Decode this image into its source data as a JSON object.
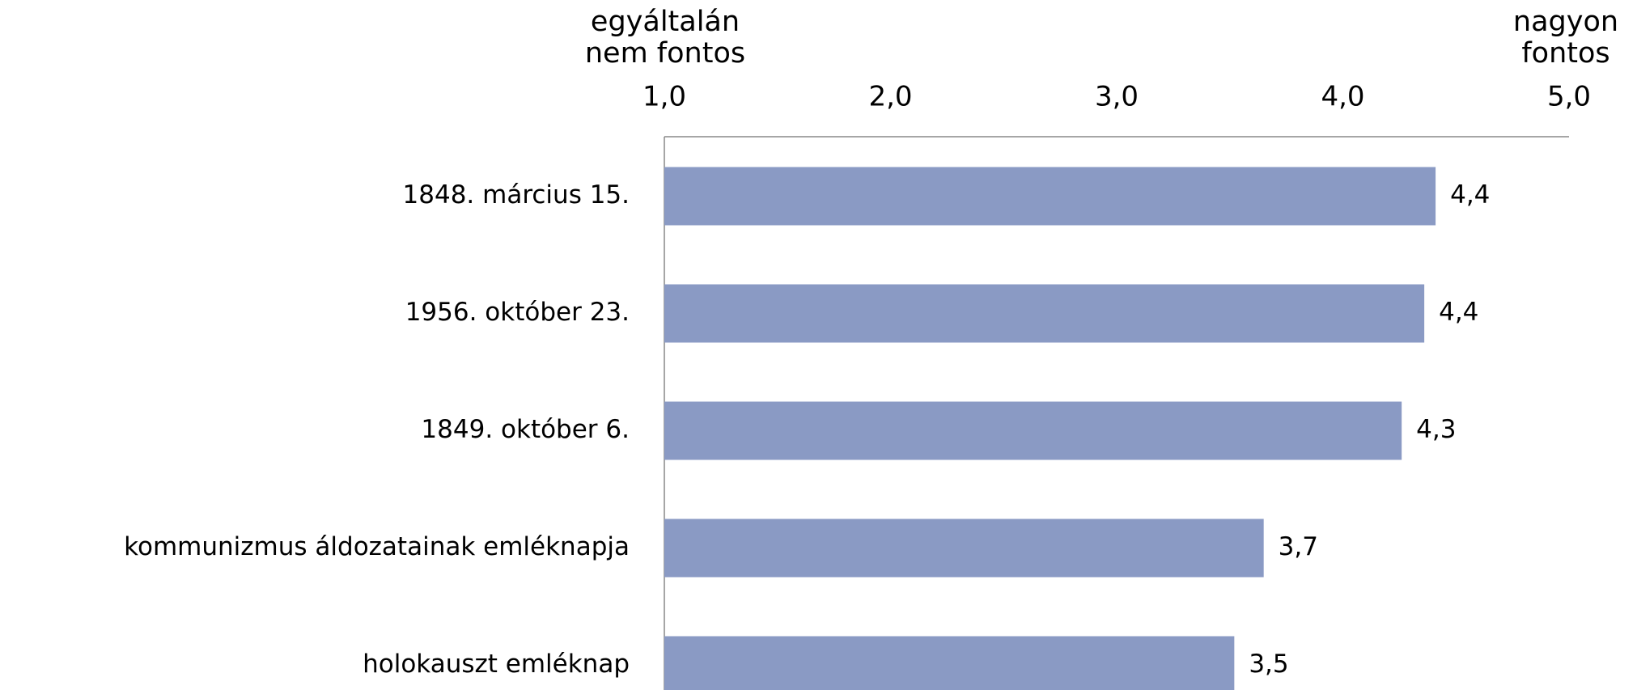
{
  "chart_data": {
    "type": "bar",
    "orientation": "horizontal",
    "categories": [
      "1848. március 15.",
      "1956. október 23.",
      "1849. október 6.",
      "kommunizmus áldozatainak emléknapja",
      "holokauszt emléknap"
    ],
    "values": [
      4.41,
      4.36,
      4.26,
      3.65,
      3.52
    ],
    "value_labels": [
      "4,4",
      "4,4",
      "4,3",
      "3,7",
      "3,5"
    ],
    "color": "#8a9ac4",
    "xlim": [
      1,
      5
    ],
    "xticks": [
      {
        "value": 1,
        "label": "1,0"
      },
      {
        "value": 2,
        "label": "2,0"
      },
      {
        "value": 3,
        "label": "3,0"
      },
      {
        "value": 4,
        "label": "4,0"
      },
      {
        "value": 5,
        "label": "5,0"
      }
    ],
    "axis_labels": {
      "left": [
        "egyáltalán",
        "nem fontos"
      ],
      "right": [
        "nagyon",
        "fontos"
      ]
    },
    "grid": false
  }
}
